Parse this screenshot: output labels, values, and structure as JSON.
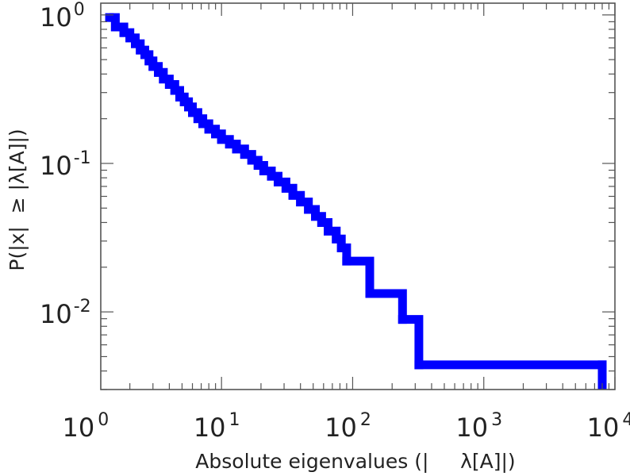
{
  "chart_data": {
    "type": "line",
    "title": "",
    "xlabel": "Absolute eigenvalues (|     λ[A]|)",
    "ylabel": "P(|x|  ≥ |λ[A]|)",
    "x_scale": "log",
    "y_scale": "log",
    "xlim": [
      1.2,
      10000
    ],
    "ylim": [
      0.003,
      1.2
    ],
    "grid": false,
    "legend": "none",
    "colors": {
      "series": "#0000ff",
      "frame": "#555555",
      "text": "#222222"
    },
    "x_ticks": [
      {
        "base": "10",
        "exp": "0"
      },
      {
        "base": "10",
        "exp": "1"
      },
      {
        "base": "10",
        "exp": "2"
      },
      {
        "base": "10",
        "exp": "3"
      },
      {
        "base": "10",
        "exp": "4"
      }
    ],
    "y_ticks": [
      {
        "base": "10",
        "exp": "0"
      },
      {
        "base": "10",
        "exp": "-1"
      },
      {
        "base": "10",
        "exp": "-2"
      }
    ],
    "series": [
      {
        "step": "vh",
        "x": [
          1.4,
          1.55,
          1.8,
          2.0,
          2.2,
          2.4,
          2.6,
          2.8,
          3.0,
          3.3,
          3.6,
          4.0,
          4.4,
          4.8,
          5.2,
          5.6,
          6.0,
          6.6,
          7.2,
          8.0,
          9.0,
          10.0,
          11.5,
          13.0,
          15.0,
          17.0,
          19.0,
          21.0,
          24.0,
          27.0,
          31.0,
          35.0,
          40.0,
          46.0,
          52.0,
          58.0,
          65.0,
          75.0,
          82.0,
          90.0,
          135.0,
          240.0,
          320.0,
          8000.0
        ],
        "y": [
          0.96,
          0.83,
          0.76,
          0.7,
          0.64,
          0.58,
          0.54,
          0.49,
          0.45,
          0.41,
          0.37,
          0.34,
          0.31,
          0.28,
          0.26,
          0.24,
          0.22,
          0.2,
          0.185,
          0.17,
          0.158,
          0.145,
          0.135,
          0.125,
          0.115,
          0.105,
          0.097,
          0.089,
          0.082,
          0.075,
          0.068,
          0.061,
          0.055,
          0.049,
          0.044,
          0.04,
          0.035,
          0.031,
          0.027,
          0.022,
          0.0133,
          0.0089,
          0.0044,
          0.0044
        ]
      }
    ]
  }
}
